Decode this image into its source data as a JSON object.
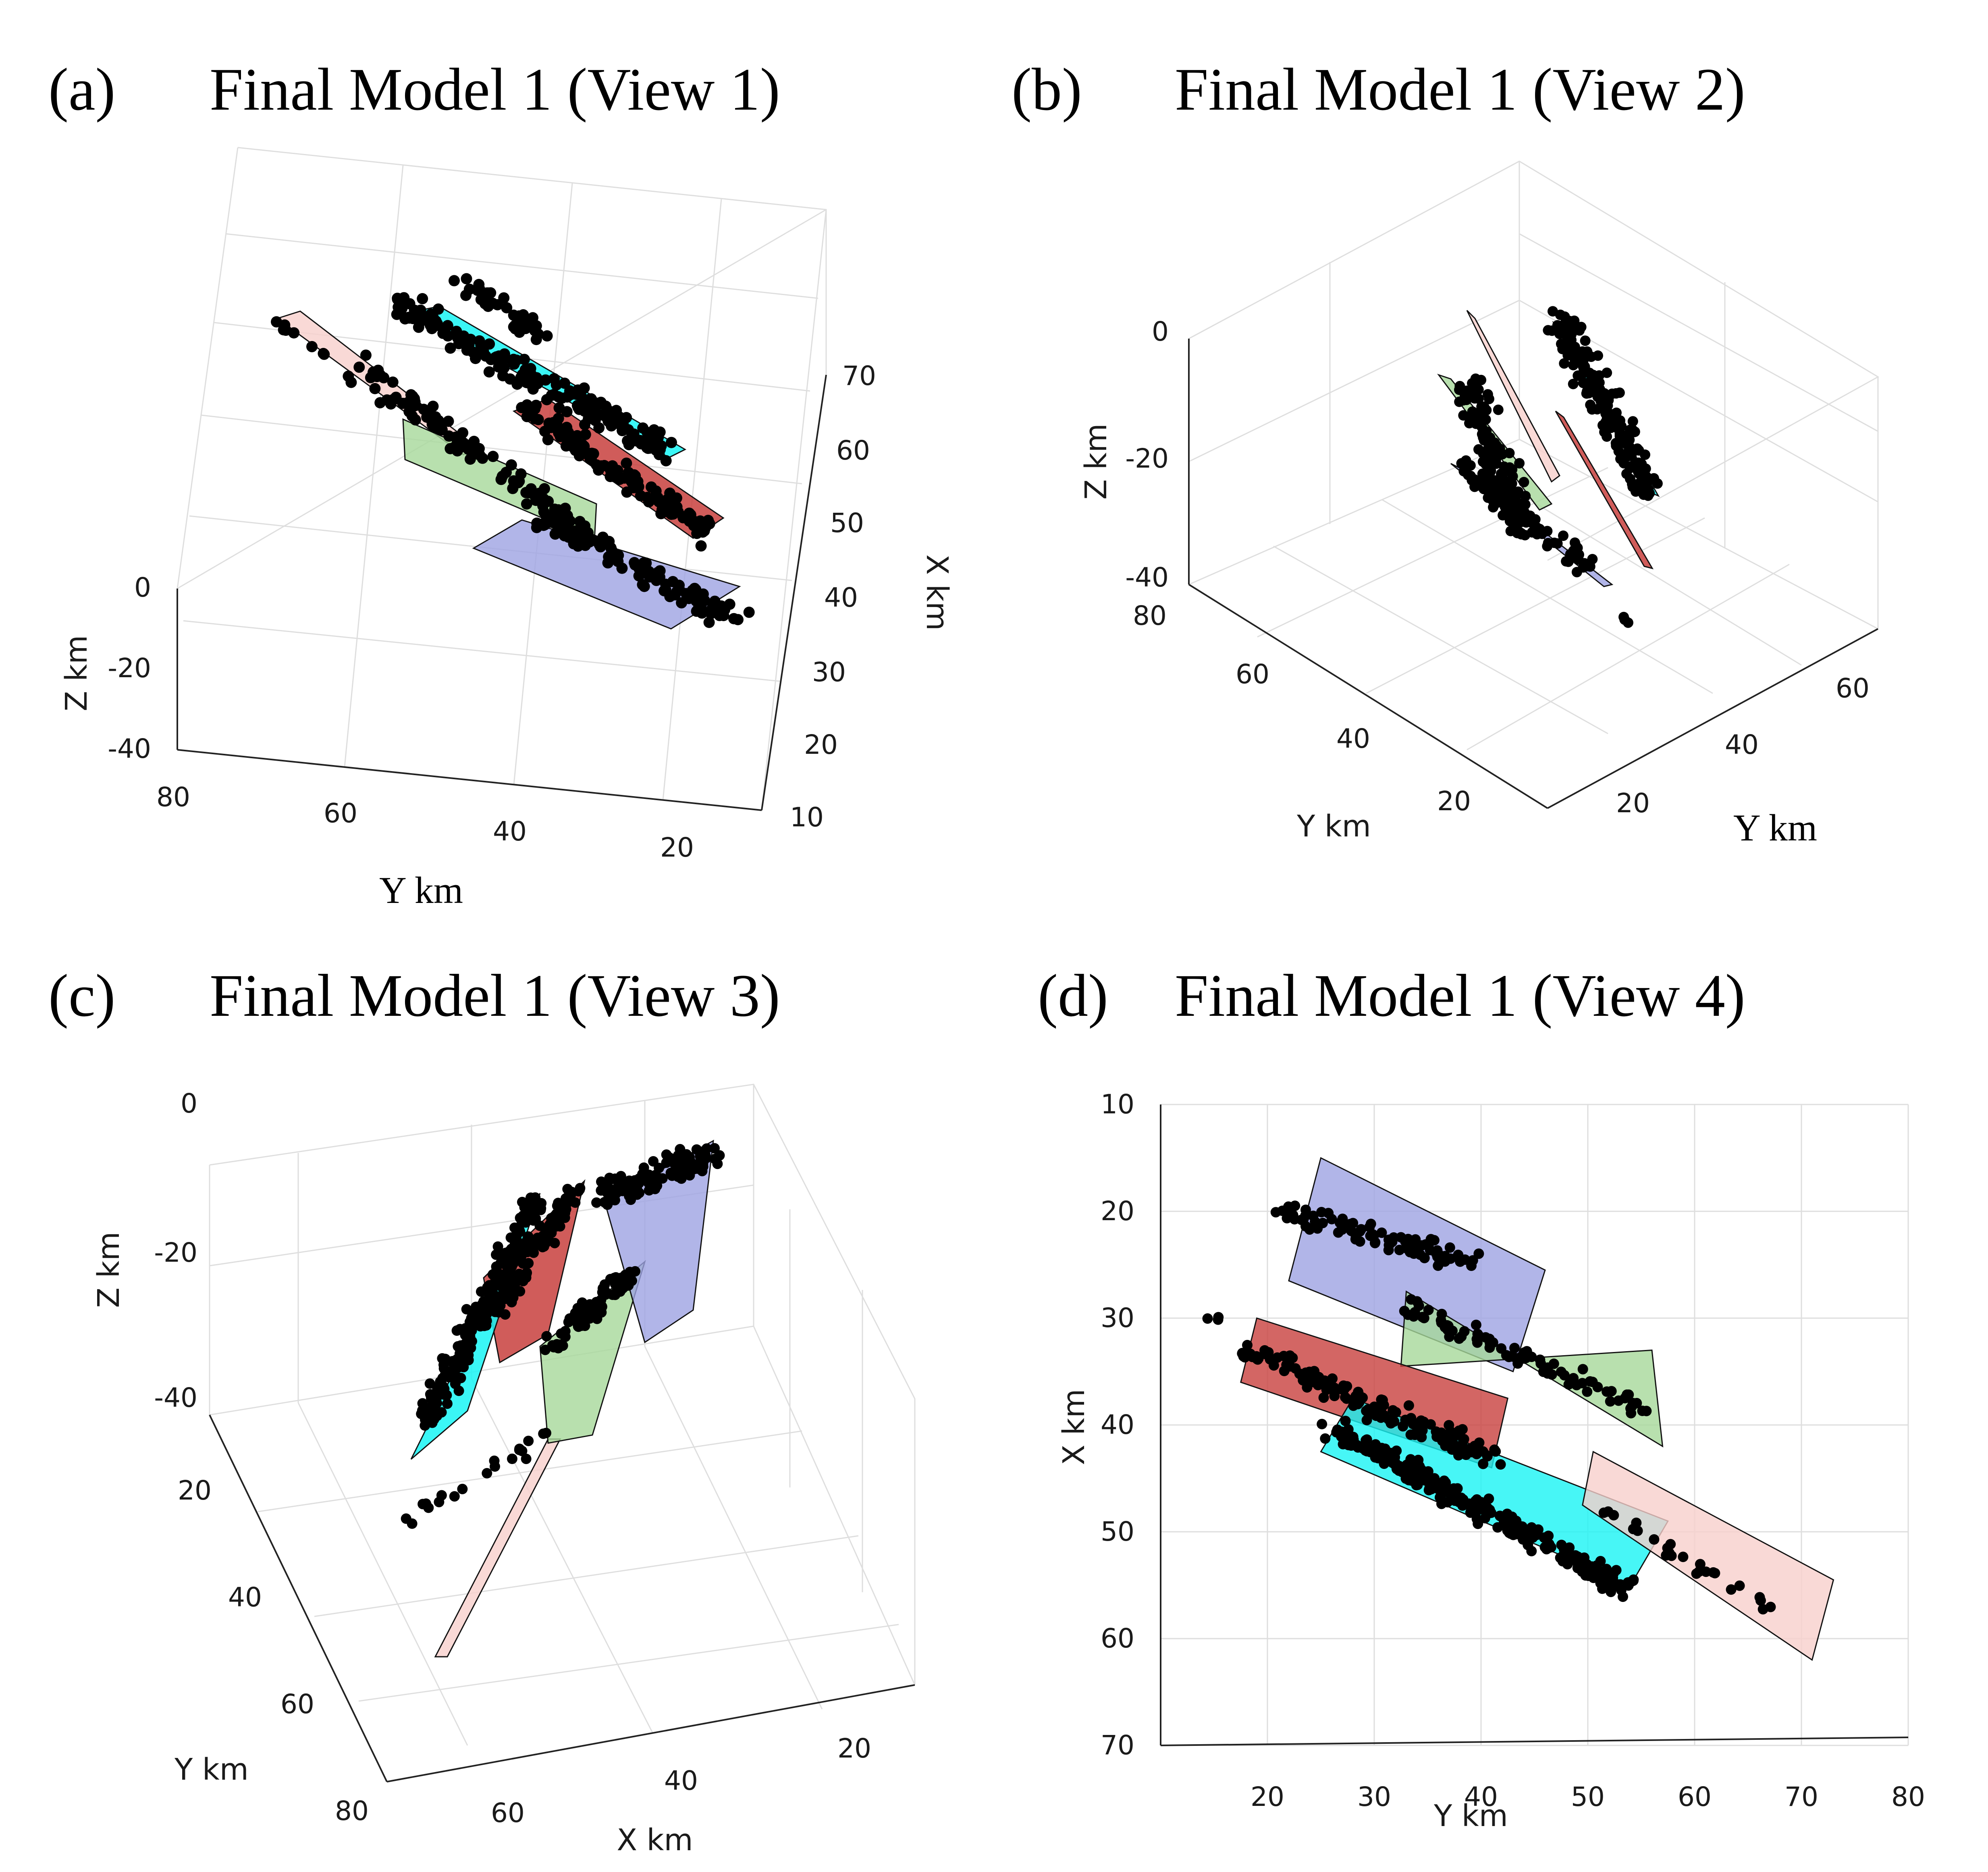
{
  "figure": {
    "colors": {
      "plane_blue": "#9ea3e2",
      "plane_green": "#a6d89a",
      "plane_red": "#c8403d",
      "plane_cyan": "#19f4f4",
      "plane_pink": "#f7cfcc",
      "event_dots": "#000000"
    }
  },
  "chart_data": [
    {
      "panel_label": "(a)",
      "title": "Final Model 1 (View 1)",
      "type": "scatter",
      "axis_labels": {
        "z": "Z km",
        "y": "Y km",
        "x": "X km"
      },
      "z_ticks": [
        "0",
        "-20",
        "-40"
      ],
      "y_ticks": [
        "80",
        "60",
        "40",
        "20"
      ],
      "x_ticks": [
        "70",
        "60",
        "50",
        "40",
        "30",
        "20",
        "10"
      ],
      "zlim": [
        -40,
        0
      ],
      "ylim": [
        10,
        80
      ],
      "xlim": [
        10,
        70
      ],
      "grid": true
    },
    {
      "panel_label": "(b)",
      "title": "Final Model 1 (View 2)",
      "type": "scatter",
      "axis_labels": {
        "z": "Z km",
        "y_left": "Y km",
        "y_right": "Y km"
      },
      "z_ticks": [
        "0",
        "-20",
        "-40"
      ],
      "left_ticks": [
        "80",
        "60",
        "40",
        "20"
      ],
      "right_ticks": [
        "60",
        "40",
        "20"
      ],
      "zlim": [
        -40,
        0
      ],
      "grid": true
    },
    {
      "panel_label": "(c)",
      "title": "Final Model 1 (View 3)",
      "type": "scatter",
      "axis_labels": {
        "z": "Z km",
        "y": "Y km",
        "x": "X km"
      },
      "z_ticks": [
        "0",
        "-20",
        "-40"
      ],
      "y_ticks": [
        "20",
        "40",
        "60",
        "80"
      ],
      "x_ticks": [
        "60",
        "40",
        "20"
      ],
      "zlim": [
        -40,
        0
      ],
      "grid": true
    },
    {
      "panel_label": "(d)",
      "title": "Final Model 1 (View 4)",
      "type": "scatter",
      "axis_labels": {
        "x": "Y km",
        "y": "X km"
      },
      "x_ticks": [
        "20",
        "30",
        "40",
        "50",
        "60",
        "70",
        "80"
      ],
      "y_ticks": [
        "10",
        "20",
        "30",
        "40",
        "50",
        "60",
        "70"
      ],
      "xlim": [
        10,
        80
      ],
      "ylim": [
        10,
        70
      ],
      "y_reversed": true,
      "grid": true,
      "fault_planes": [
        {
          "color": "plane_blue",
          "corners_yx": [
            [
              22,
              26.5
            ],
            [
              25,
              15
            ],
            [
              46,
              25.5
            ],
            [
              43,
              35
            ]
          ]
        },
        {
          "color": "plane_green",
          "corners_yx": [
            [
              33,
              27.5
            ],
            [
              32.5,
              34.5
            ],
            [
              56,
              33
            ],
            [
              57,
              42
            ]
          ]
        },
        {
          "color": "plane_red",
          "corners_yx": [
            [
              19,
              30
            ],
            [
              17.5,
              36
            ],
            [
              41,
              44
            ],
            [
              42.5,
              37.5
            ]
          ]
        },
        {
          "color": "plane_cyan",
          "corners_yx": [
            [
              28,
              37.5
            ],
            [
              25,
              42.5
            ],
            [
              54,
              55
            ],
            [
              57.5,
              49
            ]
          ]
        },
        {
          "color": "plane_pink",
          "corners_yx": [
            [
              50.5,
              42.5
            ],
            [
              49.5,
              47.5
            ],
            [
              71,
              62
            ],
            [
              73,
              54.5
            ]
          ]
        }
      ]
    }
  ]
}
